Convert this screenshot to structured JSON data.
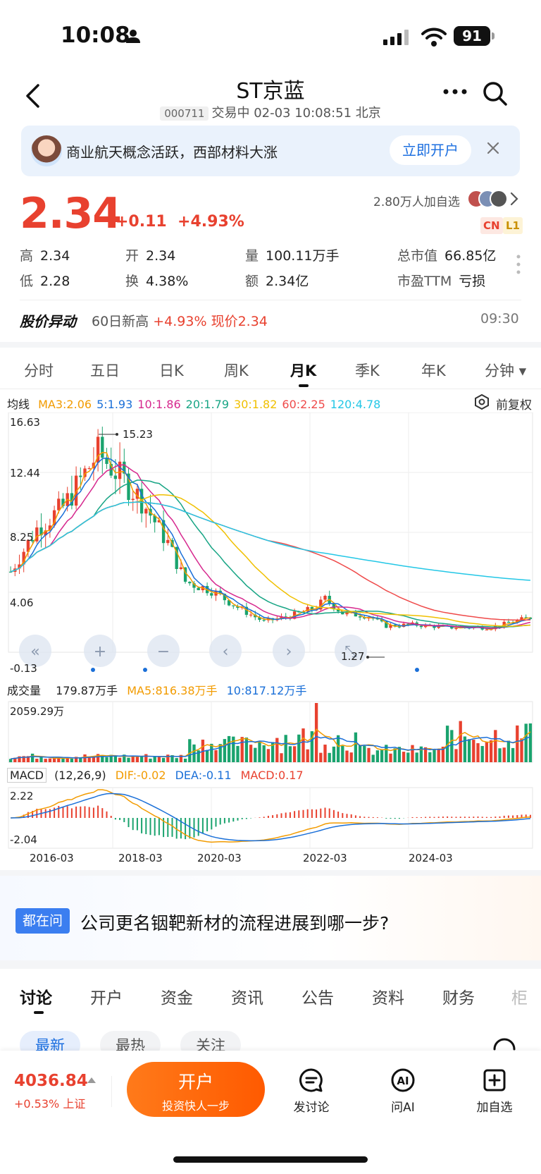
{
  "status_bar": {
    "time": "10:08",
    "battery": "91"
  },
  "header": {
    "title": "ST京蓝",
    "code": "000711",
    "status_line": "交易中 02-03 10:08:51 北京"
  },
  "banner": {
    "text": "商业航天概念活跃，西部材料大涨",
    "button_label": "立即开户"
  },
  "quote": {
    "price": "2.34",
    "change": "+0.11",
    "change_pct": "+4.93%",
    "watchers": "2.80万人加自选",
    "tag_cn": "CN",
    "tag_l1": "L1",
    "stats": [
      {
        "k": "高",
        "v": "2.34",
        "red": true
      },
      {
        "k": "开",
        "v": "2.34",
        "red": true
      },
      {
        "k": "量",
        "v": "100.11万手",
        "red": false
      },
      {
        "k": "总市值",
        "v": "66.85亿",
        "red": false
      },
      {
        "k": "低",
        "v": "2.28",
        "red": true
      },
      {
        "k": "换",
        "v": "4.38%",
        "red": false
      },
      {
        "k": "额",
        "v": "2.34亿",
        "red": false
      },
      {
        "k": "市盈TTM",
        "v": "亏损",
        "red": false
      }
    ]
  },
  "alert": {
    "title": "股价异动",
    "label": "60日新高",
    "pct": "+4.93%",
    "now_price": "现价2.34",
    "time": "09:30"
  },
  "period_tabs": [
    "分时",
    "五日",
    "日K",
    "周K",
    "月K",
    "季K",
    "年K",
    "分钟"
  ],
  "active_period": "月K",
  "ma_legend": {
    "label": "均线",
    "items": [
      {
        "text": "MA3:2.06",
        "color": "#f29b00"
      },
      {
        "text": "5:1.93",
        "color": "#1a6fd8"
      },
      {
        "text": "10:1.86",
        "color": "#d6288e"
      },
      {
        "text": "20:1.79",
        "color": "#18a585"
      },
      {
        "text": "30:1.82",
        "color": "#f0c000"
      },
      {
        "text": "60:2.25",
        "color": "#ef4a4a"
      },
      {
        "text": "120:4.78",
        "color": "#24c7e6"
      }
    ],
    "adjust_label": "前复权"
  },
  "chart_data": {
    "type": "candlestick",
    "y_ticks": [
      "16.63",
      "12.44",
      "8.25",
      "4.06",
      "-0.13"
    ],
    "ylim": [
      -0.13,
      16.63
    ],
    "max_label": "15.23",
    "min_label": "1.27",
    "x_ticks": [
      "2016-03",
      "2018-03",
      "2020-03",
      "2022-03",
      "2024-03"
    ],
    "volume": {
      "label": "成交量",
      "current": "179.87万手",
      "ma5": "MA5:816.38万手",
      "ma10": "10:817.12万手",
      "max_tick": "2059.29万"
    },
    "macd": {
      "label": "MACD",
      "params": "(12,26,9)",
      "dif": "DIF:-0.02",
      "dea": "DEA:-0.11",
      "macd": "MACD:0.17",
      "y_ticks": [
        "2.22",
        "-2.04"
      ]
    }
  },
  "ask": {
    "badge": "都在问",
    "question": "公司更名铟靶新材的流程进展到哪一步?"
  },
  "bottom_tabs": [
    "讨论",
    "开户",
    "资金",
    "资讯",
    "公告",
    "资料",
    "财务",
    "柜"
  ],
  "filter_chips": [
    "最新",
    "最热",
    "关注"
  ],
  "bottom_bar": {
    "index_value": "4036.84",
    "index_change": "+0.53%",
    "index_name": "上证",
    "open_title": "开户",
    "open_sub": "投资快人一步",
    "discuss": "发讨论",
    "ask_ai": "问AI",
    "add_watch": "加自选"
  }
}
